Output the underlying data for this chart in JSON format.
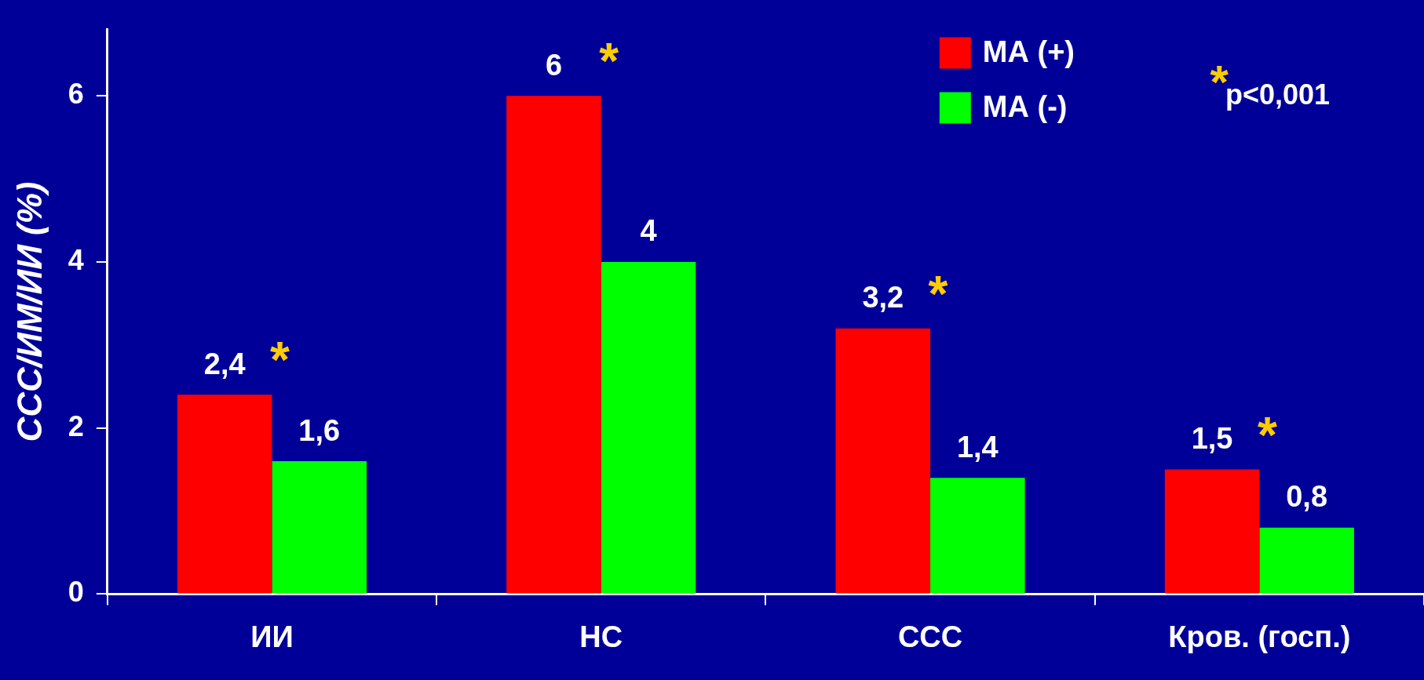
{
  "chart_data": {
    "type": "bar",
    "ylabel": "ССС/ИМ/ИИ (%)",
    "categories": [
      "ИИ",
      "НС",
      "ССС",
      "Кров. (госп.)"
    ],
    "series": [
      {
        "name": "МА (+)",
        "color": "#ff0000",
        "values": [
          2.4,
          6,
          3.2,
          1.5
        ],
        "value_labels": [
          "2,4",
          "6",
          "3,2",
          "1,5"
        ]
      },
      {
        "name": "МА (-)",
        "color": "#00ff00",
        "values": [
          1.6,
          4,
          1.4,
          0.8
        ],
        "value_labels": [
          "1,6",
          "4",
          "1,4",
          "0,8"
        ]
      }
    ],
    "ylim": [
      0,
      6.8
    ],
    "yticks": [
      0,
      2,
      4,
      6
    ],
    "grid": false,
    "legend": "top right",
    "annotations": [
      {
        "text": "*",
        "x": "ИИ",
        "y": 2.4
      },
      {
        "text": "*",
        "x": "НС",
        "y": 6
      },
      {
        "text": "*",
        "x": "ССС",
        "y": 3.2
      },
      {
        "text": "*",
        "x": "Кров. (госп.)",
        "y": 1.5
      },
      "*p<0,001"
    ]
  }
}
